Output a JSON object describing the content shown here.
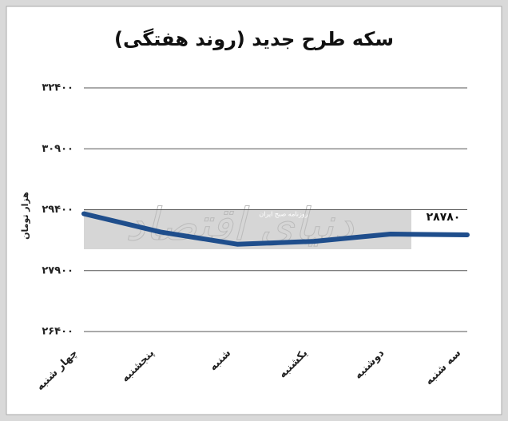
{
  "chart_data": {
    "type": "line",
    "title": "سکه طرح جدید (روند هفتگی)",
    "y_label": "هزار تومان",
    "watermark": "دنیای اقتصاد",
    "watermark_subtitle": "روزنامه صبح ایران",
    "categories": [
      "چهار شنبه",
      "پنجشنبه",
      "شنبه",
      "یکشنبه",
      "دوشنبه",
      "سه شنبه"
    ],
    "series": [
      {
        "name": "سکه طرح جدید",
        "color": "#1f4e8c",
        "values": [
          29300,
          28850,
          28550,
          28620,
          28800,
          28780
        ],
        "value_labels": [
          null,
          null,
          null,
          null,
          null,
          "۲۸۷۸۰"
        ]
      }
    ],
    "ylim": [
      26400,
      32400
    ],
    "yticks": [
      {
        "value": 32400,
        "label": "۳۲۴۰۰"
      },
      {
        "value": 30900,
        "label": "۳۰۹۰۰"
      },
      {
        "value": 29400,
        "label": "۲۹۴۰۰"
      },
      {
        "value": 27900,
        "label": "۲۷۹۰۰"
      },
      {
        "value": 26400,
        "label": "۲۶۴۰۰"
      }
    ],
    "grid": true
  }
}
